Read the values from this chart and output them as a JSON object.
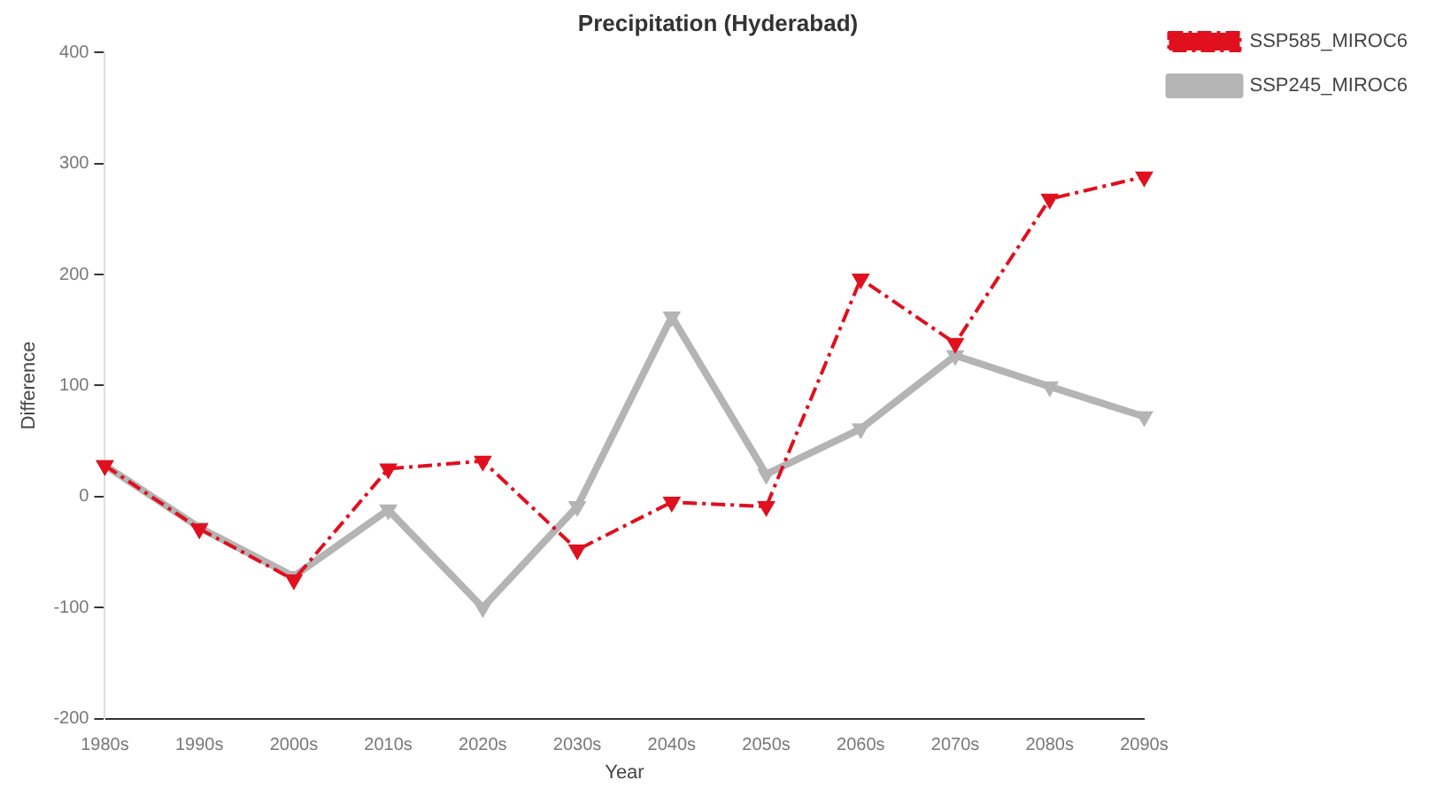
{
  "chart_data": {
    "type": "line",
    "title": "Precipitation (Hyderabad)",
    "xlabel": "Year",
    "ylabel": "Difference",
    "categories": [
      "1980s",
      "1990s",
      "2000s",
      "2010s",
      "2020s",
      "2030s",
      "2040s",
      "2050s",
      "2060s",
      "2070s",
      "2080s",
      "2090s"
    ],
    "series": [
      {
        "name": "SSP245_MIROC6",
        "color": "#b4b4b4",
        "line_style": "solid",
        "values": [
          28,
          -28,
          -72,
          -12,
          -100,
          -9,
          162,
          20,
          61,
          127,
          99,
          72
        ]
      },
      {
        "name": "SSP585_MIROC6",
        "color": "#e0101e",
        "line_style": "dashed",
        "values": [
          28,
          -29,
          -75,
          25,
          32,
          -48,
          -5,
          -9,
          196,
          138,
          268,
          288
        ]
      }
    ],
    "ylim": [
      -200,
      400
    ],
    "yticks": [
      -200,
      -100,
      0,
      100,
      200,
      300,
      400
    ],
    "grid": false,
    "legend": "top right",
    "marker": "triangle"
  }
}
